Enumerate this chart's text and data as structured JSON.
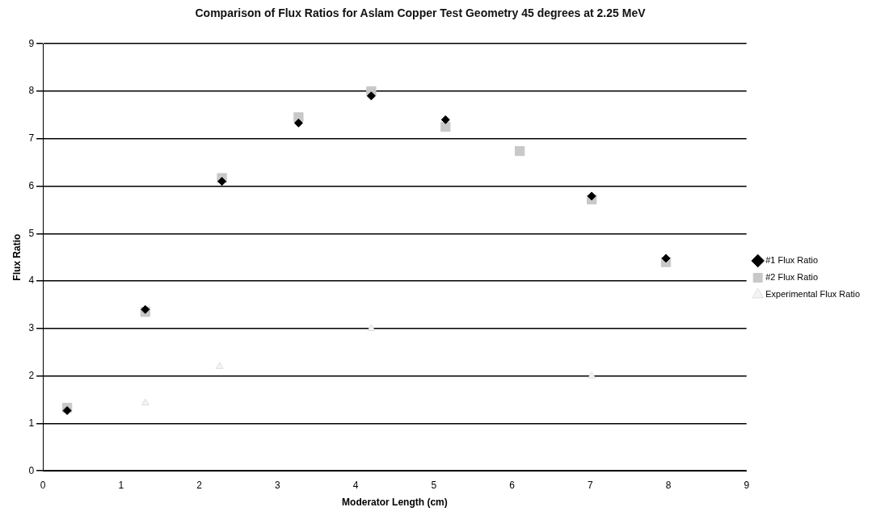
{
  "chart_data": {
    "type": "scatter",
    "title": "Comparison of Flux Ratios for Aslam Copper Test Geometry 45 degrees at 2.25 MeV",
    "xlabel": "Moderator Length (cm)",
    "ylabel": "Flux Ratio",
    "xlim": [
      0,
      9
    ],
    "xticks": [
      0,
      1,
      2,
      3,
      4,
      5,
      6,
      7,
      8,
      9
    ],
    "ylim": [
      0,
      9
    ],
    "yticks": [
      0,
      1,
      2,
      3,
      4,
      5,
      6,
      7,
      8,
      9
    ],
    "grid": "y",
    "legend": "right",
    "series": [
      {
        "name": "#1 Flux Ratio",
        "color": "#000000",
        "marker": "diamond",
        "x": [
          0.31,
          1.31,
          2.29,
          3.27,
          4.2,
          5.15,
          6.1,
          7.02,
          7.97
        ],
        "values": [
          1.27,
          3.4,
          6.1,
          7.33,
          7.9,
          7.4,
          null,
          5.79,
          4.48
        ]
      },
      {
        "name": "#2 Flux Ratio",
        "color": "#c8c8c8",
        "marker": "square",
        "x": [
          0.31,
          1.31,
          2.29,
          3.27,
          4.2,
          5.15,
          6.1,
          7.02,
          7.97
        ],
        "values": [
          1.33,
          3.35,
          6.17,
          7.45,
          8.0,
          7.25,
          6.74,
          5.72,
          4.4
        ]
      },
      {
        "name": "Experimental Flux Ratio",
        "color": "#f4f4f4",
        "marker": "triangle",
        "x": [
          1.31,
          2.26,
          4.2,
          7.02
        ],
        "values": [
          1.43,
          2.2,
          3.0,
          2.0
        ]
      }
    ]
  }
}
